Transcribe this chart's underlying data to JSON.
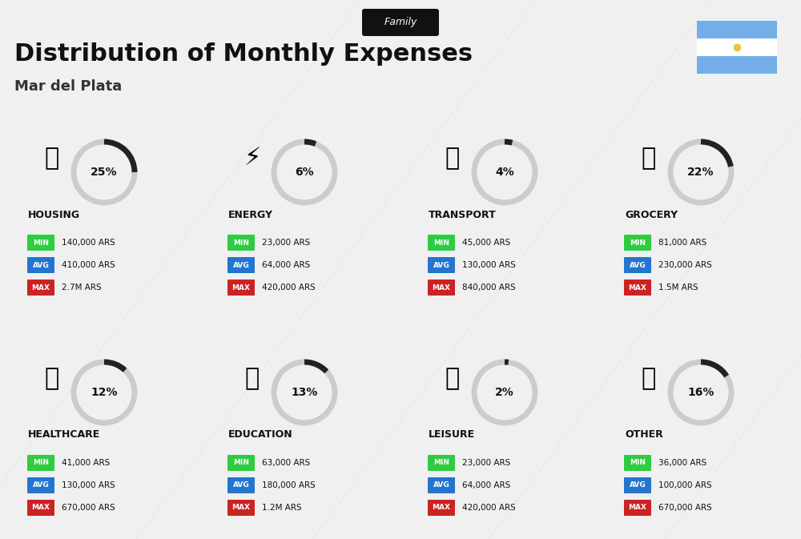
{
  "title": "Distribution of Monthly Expenses",
  "subtitle": "Mar del Plata",
  "tag": "Family",
  "bg_color": "#f0f0f0",
  "categories": [
    {
      "name": "HOUSING",
      "pct": 25,
      "min": "140,000 ARS",
      "avg": "410,000 ARS",
      "max": "2.7M ARS",
      "row": 0,
      "col": 0
    },
    {
      "name": "ENERGY",
      "pct": 6,
      "min": "23,000 ARS",
      "avg": "64,000 ARS",
      "max": "420,000 ARS",
      "row": 0,
      "col": 1
    },
    {
      "name": "TRANSPORT",
      "pct": 4,
      "min": "45,000 ARS",
      "avg": "130,000 ARS",
      "max": "840,000 ARS",
      "row": 0,
      "col": 2
    },
    {
      "name": "GROCERY",
      "pct": 22,
      "min": "81,000 ARS",
      "avg": "230,000 ARS",
      "max": "1.5M ARS",
      "row": 0,
      "col": 3
    },
    {
      "name": "HEALTHCARE",
      "pct": 12,
      "min": "41,000 ARS",
      "avg": "130,000 ARS",
      "max": "670,000 ARS",
      "row": 1,
      "col": 0
    },
    {
      "name": "EDUCATION",
      "pct": 13,
      "min": "63,000 ARS",
      "avg": "180,000 ARS",
      "max": "1.2M ARS",
      "row": 1,
      "col": 1
    },
    {
      "name": "LEISURE",
      "pct": 2,
      "min": "23,000 ARS",
      "avg": "64,000 ARS",
      "max": "420,000 ARS",
      "row": 1,
      "col": 2
    },
    {
      "name": "OTHER",
      "pct": 16,
      "min": "36,000 ARS",
      "avg": "100,000 ARS",
      "max": "670,000 ARS",
      "row": 1,
      "col": 3
    }
  ],
  "color_min": "#2ecc40",
  "color_avg": "#2475d0",
  "color_max": "#cc2222",
  "color_label_min": "#ffffff",
  "color_label_avg": "#ffffff",
  "color_label_max": "#ffffff",
  "arc_color": "#222222",
  "arc_bg": "#cccccc",
  "flag_colors": [
    "#74aee8",
    "#74aee8"
  ],
  "flag_stripe": "#ffffff"
}
